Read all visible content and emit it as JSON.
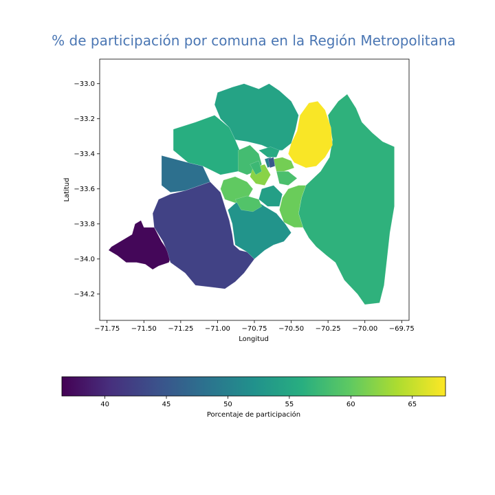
{
  "chart_data": {
    "type": "choropleth",
    "title": "% de participación por comuna en la Región Metropolitana",
    "xlabel": "Longitud",
    "ylabel": "Latitud",
    "xlim": [
      -71.8,
      -69.7
    ],
    "ylim": [
      -34.35,
      -32.86
    ],
    "xticks": [
      -71.75,
      -71.5,
      -71.25,
      -71.0,
      -70.75,
      -70.5,
      -70.25,
      -70.0,
      -69.75
    ],
    "yticks": [
      -33.0,
      -33.2,
      -33.4,
      -33.6,
      -33.8,
      -34.0,
      -34.2
    ],
    "xtick_labels": [
      "−71.75",
      "−71.50",
      "−71.25",
      "−71.00",
      "−70.75",
      "−70.50",
      "−70.25",
      "−70.00",
      "−69.75"
    ],
    "ytick_labels": [
      "−33.0",
      "−33.2",
      "−33.4",
      "−33.6",
      "−33.8",
      "−34.0",
      "−34.2"
    ],
    "colormap": "viridis",
    "colorbar": {
      "label": "Porcentaje de participación",
      "range": [
        36.5,
        67.7
      ],
      "ticks": [
        40,
        45,
        50,
        55,
        60,
        65
      ],
      "tick_labels": [
        "40",
        "45",
        "50",
        "55",
        "60",
        "65"
      ]
    },
    "regions": [
      {
        "value": 37,
        "pts": [
          [
            -71.72,
            -33.93
          ],
          [
            -71.58,
            -33.86
          ],
          [
            -71.56,
            -33.8
          ],
          [
            -71.52,
            -33.78
          ],
          [
            -71.5,
            -33.82
          ],
          [
            -71.43,
            -33.82
          ],
          [
            -71.38,
            -33.9
          ],
          [
            -71.34,
            -33.95
          ],
          [
            -71.31,
            -33.97
          ],
          [
            -71.33,
            -34.02
          ],
          [
            -71.4,
            -34.04
          ],
          [
            -71.44,
            -34.06
          ],
          [
            -71.49,
            -34.03
          ],
          [
            -71.55,
            -34.02
          ],
          [
            -71.62,
            -34.02
          ],
          [
            -71.68,
            -33.98
          ],
          [
            -71.74,
            -33.95
          ]
        ]
      },
      {
        "value": 42.5,
        "pts": [
          [
            -71.43,
            -33.82
          ],
          [
            -71.44,
            -33.74
          ],
          [
            -71.4,
            -33.66
          ],
          [
            -71.32,
            -33.63
          ],
          [
            -71.22,
            -33.61
          ],
          [
            -71.05,
            -33.56
          ],
          [
            -70.98,
            -33.62
          ],
          [
            -70.95,
            -33.7
          ],
          [
            -70.92,
            -33.78
          ],
          [
            -70.9,
            -33.86
          ],
          [
            -70.89,
            -33.92
          ],
          [
            -70.85,
            -33.95
          ],
          [
            -70.8,
            -33.96
          ],
          [
            -70.75,
            -34.0
          ],
          [
            -70.82,
            -34.08
          ],
          [
            -70.88,
            -34.13
          ],
          [
            -70.95,
            -34.17
          ],
          [
            -71.05,
            -34.16
          ],
          [
            -71.15,
            -34.15
          ],
          [
            -71.22,
            -34.08
          ],
          [
            -71.32,
            -34.02
          ],
          [
            -71.34,
            -33.96
          ],
          [
            -71.37,
            -33.9
          ]
        ]
      },
      {
        "value": 48,
        "pts": [
          [
            -71.38,
            -33.41
          ],
          [
            -71.2,
            -33.45
          ],
          [
            -71.1,
            -33.47
          ],
          [
            -71.05,
            -33.56
          ],
          [
            -71.22,
            -33.61
          ],
          [
            -71.32,
            -33.62
          ],
          [
            -71.38,
            -33.58
          ]
        ]
      },
      {
        "value": 52.5,
        "pts": [
          [
            -70.93,
            -33.72
          ],
          [
            -70.85,
            -33.66
          ],
          [
            -70.75,
            -33.66
          ],
          [
            -70.68,
            -33.7
          ],
          [
            -70.6,
            -33.74
          ],
          [
            -70.54,
            -33.8
          ],
          [
            -70.5,
            -33.85
          ],
          [
            -70.55,
            -33.9
          ],
          [
            -70.62,
            -33.92
          ],
          [
            -70.68,
            -33.95
          ],
          [
            -70.75,
            -34.0
          ],
          [
            -70.8,
            -33.96
          ],
          [
            -70.88,
            -33.92
          ],
          [
            -70.9,
            -33.8
          ]
        ]
      },
      {
        "value": 54.5,
        "pts": [
          [
            -71.0,
            -33.05
          ],
          [
            -70.9,
            -33.02
          ],
          [
            -70.82,
            -33.0
          ],
          [
            -70.72,
            -33.03
          ],
          [
            -70.65,
            -33.0
          ],
          [
            -70.58,
            -33.04
          ],
          [
            -70.5,
            -33.1
          ],
          [
            -70.45,
            -33.18
          ],
          [
            -70.47,
            -33.26
          ],
          [
            -70.5,
            -33.34
          ],
          [
            -70.56,
            -33.38
          ],
          [
            -70.62,
            -33.38
          ],
          [
            -70.7,
            -33.35
          ],
          [
            -70.8,
            -33.33
          ],
          [
            -70.88,
            -33.32
          ],
          [
            -70.92,
            -33.25
          ],
          [
            -70.98,
            -33.2
          ],
          [
            -71.02,
            -33.12
          ]
        ]
      },
      {
        "value": 56,
        "pts": [
          [
            -71.3,
            -33.26
          ],
          [
            -71.15,
            -33.22
          ],
          [
            -71.02,
            -33.18
          ],
          [
            -70.92,
            -33.25
          ],
          [
            -70.88,
            -33.32
          ],
          [
            -70.84,
            -33.4
          ],
          [
            -70.86,
            -33.5
          ],
          [
            -70.98,
            -33.52
          ],
          [
            -71.1,
            -33.47
          ],
          [
            -71.2,
            -33.45
          ],
          [
            -71.3,
            -33.38
          ]
        ]
      },
      {
        "value": 56.5,
        "pts": [
          [
            -70.25,
            -33.18
          ],
          [
            -70.18,
            -33.1
          ],
          [
            -70.12,
            -33.06
          ],
          [
            -70.06,
            -33.14
          ],
          [
            -70.02,
            -33.22
          ],
          [
            -69.95,
            -33.28
          ],
          [
            -69.88,
            -33.33
          ],
          [
            -69.8,
            -33.36
          ],
          [
            -69.8,
            -33.55
          ],
          [
            -69.8,
            -33.7
          ],
          [
            -69.83,
            -33.85
          ],
          [
            -69.85,
            -34.0
          ],
          [
            -69.87,
            -34.15
          ],
          [
            -69.9,
            -34.25
          ],
          [
            -70.0,
            -34.26
          ],
          [
            -70.05,
            -34.2
          ],
          [
            -70.14,
            -34.12
          ],
          [
            -70.2,
            -34.02
          ],
          [
            -70.26,
            -33.98
          ],
          [
            -70.33,
            -33.93
          ],
          [
            -70.38,
            -33.88
          ],
          [
            -70.42,
            -33.82
          ],
          [
            -70.45,
            -33.74
          ],
          [
            -70.43,
            -33.65
          ],
          [
            -70.4,
            -33.58
          ],
          [
            -70.3,
            -33.5
          ],
          [
            -70.24,
            -33.42
          ],
          [
            -70.22,
            -33.32
          ]
        ]
      },
      {
        "value": 60.5,
        "pts": [
          [
            -70.52,
            -33.6
          ],
          [
            -70.45,
            -33.58
          ],
          [
            -70.4,
            -33.58
          ],
          [
            -70.43,
            -33.65
          ],
          [
            -70.45,
            -33.74
          ],
          [
            -70.42,
            -33.82
          ],
          [
            -70.48,
            -33.82
          ],
          [
            -70.55,
            -33.79
          ],
          [
            -70.58,
            -33.72
          ],
          [
            -70.56,
            -33.65
          ]
        ]
      },
      {
        "value": 67.5,
        "pts": [
          [
            -70.5,
            -33.34
          ],
          [
            -70.46,
            -33.27
          ],
          [
            -70.44,
            -33.18
          ],
          [
            -70.38,
            -33.11
          ],
          [
            -70.32,
            -33.1
          ],
          [
            -70.27,
            -33.15
          ],
          [
            -70.23,
            -33.25
          ],
          [
            -70.22,
            -33.35
          ],
          [
            -70.27,
            -33.42
          ],
          [
            -70.33,
            -33.47
          ],
          [
            -70.4,
            -33.48
          ],
          [
            -70.48,
            -33.45
          ],
          [
            -70.52,
            -33.4
          ]
        ]
      },
      {
        "value": 58,
        "pts": [
          [
            -70.86,
            -33.38
          ],
          [
            -70.78,
            -33.35
          ],
          [
            -70.72,
            -33.4
          ],
          [
            -70.7,
            -33.46
          ],
          [
            -70.74,
            -33.5
          ],
          [
            -70.8,
            -33.52
          ],
          [
            -70.86,
            -33.5
          ]
        ]
      },
      {
        "value": 62,
        "pts": [
          [
            -70.76,
            -33.48
          ],
          [
            -70.68,
            -33.46
          ],
          [
            -70.64,
            -33.52
          ],
          [
            -70.68,
            -33.58
          ],
          [
            -70.74,
            -33.57
          ],
          [
            -70.78,
            -33.53
          ]
        ]
      },
      {
        "value": 60,
        "pts": [
          [
            -70.96,
            -33.55
          ],
          [
            -70.88,
            -33.53
          ],
          [
            -70.8,
            -33.56
          ],
          [
            -70.76,
            -33.6
          ],
          [
            -70.8,
            -33.66
          ],
          [
            -70.88,
            -33.68
          ],
          [
            -70.95,
            -33.66
          ],
          [
            -70.98,
            -33.6
          ]
        ]
      },
      {
        "value": 59,
        "pts": [
          [
            -70.88,
            -33.66
          ],
          [
            -70.8,
            -33.64
          ],
          [
            -70.72,
            -33.66
          ],
          [
            -70.7,
            -33.7
          ],
          [
            -70.76,
            -33.73
          ],
          [
            -70.84,
            -33.72
          ]
        ]
      },
      {
        "value": 61,
        "pts": [
          [
            -70.62,
            -33.43
          ],
          [
            -70.56,
            -33.42
          ],
          [
            -70.5,
            -33.44
          ],
          [
            -70.48,
            -33.48
          ],
          [
            -70.55,
            -33.5
          ],
          [
            -70.6,
            -33.5
          ]
        ]
      },
      {
        "value": 58.5,
        "pts": [
          [
            -70.6,
            -33.5
          ],
          [
            -70.52,
            -33.5
          ],
          [
            -70.46,
            -33.54
          ],
          [
            -70.52,
            -33.58
          ],
          [
            -70.58,
            -33.57
          ]
        ]
      },
      {
        "value": 54,
        "pts": [
          [
            -70.7,
            -33.6
          ],
          [
            -70.62,
            -33.58
          ],
          [
            -70.56,
            -33.63
          ],
          [
            -70.58,
            -33.7
          ],
          [
            -70.66,
            -33.7
          ],
          [
            -70.72,
            -33.66
          ]
        ]
      },
      {
        "value": 50,
        "pts": [
          [
            -70.68,
            -33.43
          ],
          [
            -70.64,
            -33.42
          ],
          [
            -70.62,
            -33.46
          ],
          [
            -70.66,
            -33.48
          ]
        ]
      },
      {
        "value": 45,
        "pts": [
          [
            -70.655,
            -33.43
          ],
          [
            -70.62,
            -33.42
          ],
          [
            -70.61,
            -33.47
          ],
          [
            -70.645,
            -33.48
          ]
        ]
      },
      {
        "value": 55.5,
        "pts": [
          [
            -70.72,
            -33.38
          ],
          [
            -70.64,
            -33.36
          ],
          [
            -70.58,
            -33.38
          ],
          [
            -70.6,
            -33.42
          ],
          [
            -70.66,
            -33.42
          ]
        ]
      },
      {
        "value": 57.5,
        "pts": [
          [
            -70.78,
            -33.46
          ],
          [
            -70.72,
            -33.44
          ],
          [
            -70.7,
            -33.5
          ],
          [
            -70.74,
            -33.52
          ]
        ]
      }
    ]
  }
}
